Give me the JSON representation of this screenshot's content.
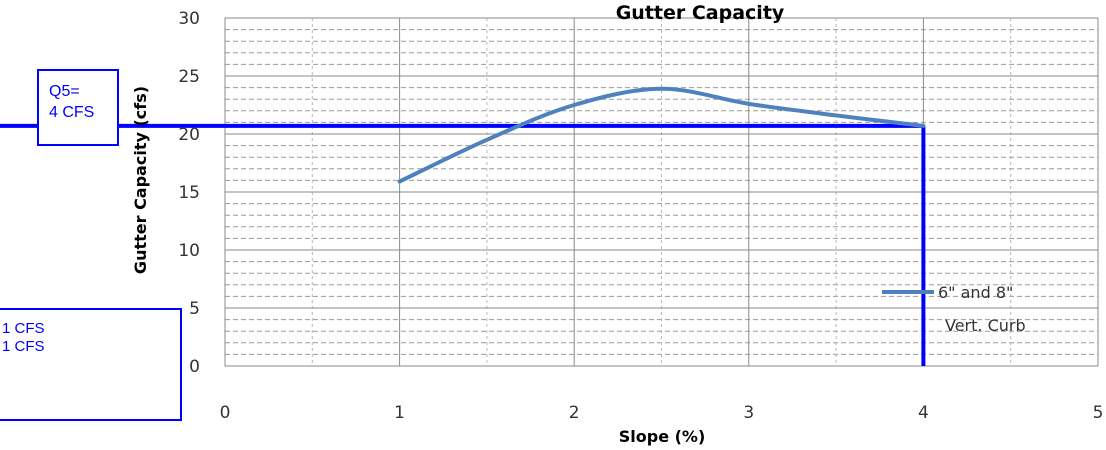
{
  "chart_data": {
    "type": "line",
    "title": "Gutter Capacity",
    "xlabel": "Slope (%)",
    "ylabel": "Gutter Capacity (cfs)",
    "xlim": [
      0,
      5
    ],
    "ylim": [
      0,
      30
    ],
    "x_ticks": [
      0,
      1,
      2,
      3,
      4,
      5
    ],
    "y_ticks": [
      0,
      5,
      10,
      15,
      20,
      25,
      30
    ],
    "grid": true,
    "legend_position": "right",
    "series": [
      {
        "name": "6\" and 8\" Vert. Curb",
        "color": "#4f81bd",
        "x": [
          1.0,
          1.5,
          2.0,
          2.5,
          3.0,
          3.5,
          4.0
        ],
        "y": [
          15.9,
          19.5,
          22.5,
          23.9,
          22.6,
          21.6,
          20.7
        ]
      }
    ],
    "reference_lines": {
      "color": "#0000ff",
      "capacity": 20.7,
      "slope": 4.0
    }
  },
  "annotations": {
    "q5_box": [
      "Q5=",
      "4 CFS"
    ],
    "cfs_box": [
      "1 CFS",
      "1 CFS"
    ]
  }
}
